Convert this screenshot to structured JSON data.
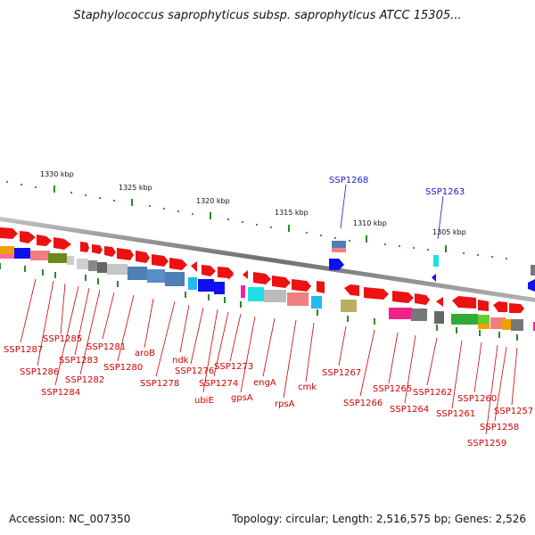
{
  "title": "Staphylococcus saprophyticus subsp. saprophyticus ATCC 15305...",
  "accession_text": "Accession: NC_007350",
  "topology_text": "Topology: circular; Length: 2,516,575 bp; Genes: 2,526",
  "scale_labels": [
    "1330 kbp",
    "1325 kbp",
    "1320 kbp",
    "1315 kbp",
    "1310 kbp",
    "1305 kbp"
  ],
  "gene_labels_red": [
    "SSP1287",
    "SSP1286",
    "SSP1285",
    "SSP1284",
    "SSP1283",
    "SSP1282",
    "SSP1281",
    "SSP1280",
    "aroB",
    "SSP1278",
    "ndk",
    "SSP1276",
    "ubiE",
    "SSP1274",
    "SSP1273",
    "gpsA",
    "engA",
    "rpsA",
    "cmk",
    "SSP1267",
    "SSP1266",
    "SSP1265",
    "SSP1264",
    "SSP1262",
    "SSP1261",
    "SSP1260",
    "SSP1259",
    "SSP1258",
    "SSP1257"
  ],
  "gene_labels_blue": [
    "SSP1268",
    "SSP1263"
  ],
  "colors": {
    "backbone": "#8c8c8c",
    "forward_gene": "#ee1111",
    "label_red": "#d00000",
    "label_blue": "#1a1acc",
    "tick_green": "#2a8a2a"
  }
}
